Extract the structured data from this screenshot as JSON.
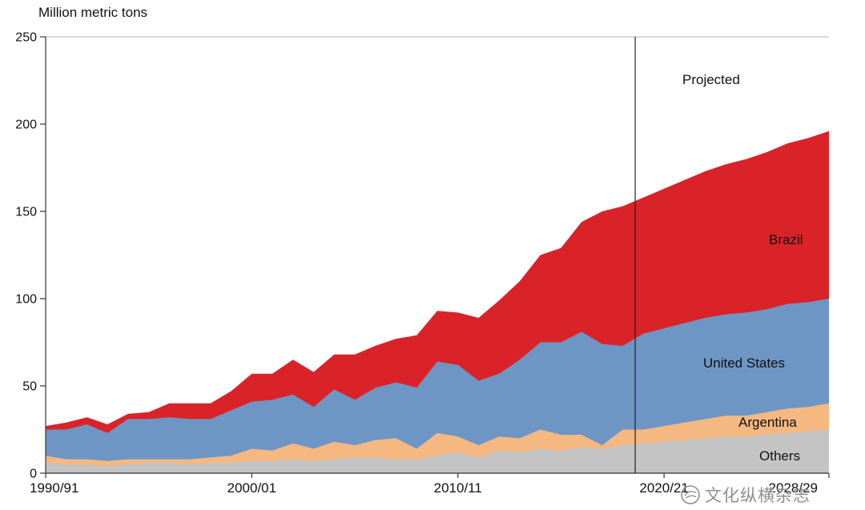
{
  "title": "Million metric tons",
  "labels": {
    "projected": "Projected",
    "brazil": "Brazil",
    "united_states": "United States",
    "argentina": "Argentina",
    "others": "Others"
  },
  "watermark": {
    "text": "文化纵横杂志"
  },
  "chart_data": {
    "type": "area",
    "stacked": true,
    "title": "Million metric tons",
    "ylabel": "Million metric tons",
    "xlabel": "",
    "ylim": [
      0,
      250
    ],
    "yticks": [
      0,
      50,
      100,
      150,
      200,
      250
    ],
    "grid": false,
    "legend_position": "inline-right",
    "annotation": {
      "text": "Projected",
      "line_at_x_index": 28.6
    },
    "x": [
      "1990/91",
      "1991/92",
      "1992/93",
      "1993/94",
      "1994/95",
      "1995/96",
      "1996/97",
      "1997/98",
      "1998/99",
      "1999/00",
      "2000/01",
      "2001/02",
      "2002/03",
      "2003/04",
      "2004/05",
      "2005/06",
      "2006/07",
      "2007/08",
      "2008/09",
      "2009/10",
      "2010/11",
      "2011/12",
      "2012/13",
      "2013/14",
      "2014/15",
      "2015/16",
      "2016/17",
      "2017/18",
      "2018/19",
      "2019/20",
      "2020/21",
      "2021/22",
      "2022/23",
      "2023/24",
      "2024/25",
      "2025/26",
      "2026/27",
      "2027/28",
      "2028/29"
    ],
    "xtick_labels": [
      "1990/91",
      "2000/01",
      "2010/11",
      "2020/21",
      "2028/29"
    ],
    "xtick_indices": [
      0,
      10,
      20,
      30,
      38
    ],
    "series": [
      {
        "name": "Others",
        "color": "#c4c4c4",
        "values": [
          6,
          5,
          5,
          4,
          5,
          6,
          6,
          5,
          6,
          6,
          7,
          7,
          8,
          7,
          8,
          9,
          9,
          8,
          8,
          10,
          12,
          9,
          13,
          12,
          14,
          13,
          15,
          14,
          16,
          17,
          18,
          19,
          20,
          21,
          21,
          22,
          23,
          24,
          25
        ]
      },
      {
        "name": "Argentina",
        "color": "#f5b881",
        "values": [
          4,
          3,
          3,
          3,
          3,
          2,
          2,
          3,
          3,
          4,
          7,
          6,
          9,
          7,
          10,
          7,
          10,
          12,
          6,
          13,
          9,
          7,
          8,
          8,
          11,
          9,
          7,
          2,
          9,
          8,
          9,
          10,
          11,
          12,
          12,
          13,
          14,
          14,
          15
        ]
      },
      {
        "name": "United States",
        "color": "#6d96c4",
        "values": [
          15,
          17,
          20,
          16,
          23,
          23,
          24,
          23,
          22,
          26,
          27,
          29,
          28,
          24,
          30,
          26,
          30,
          32,
          35,
          41,
          41,
          37,
          36,
          45,
          50,
          53,
          59,
          58,
          48,
          55,
          56,
          57,
          58,
          58,
          59,
          59,
          60,
          60,
          60
        ]
      },
      {
        "name": "Brazil",
        "color": "#d92329",
        "values": [
          2,
          4,
          4,
          5,
          3,
          4,
          8,
          9,
          9,
          11,
          16,
          15,
          20,
          20,
          20,
          26,
          24,
          25,
          30,
          29,
          30,
          36,
          42,
          45,
          50,
          54,
          63,
          76,
          80,
          78,
          80,
          82,
          84,
          86,
          88,
          90,
          92,
          94,
          96
        ]
      }
    ]
  }
}
